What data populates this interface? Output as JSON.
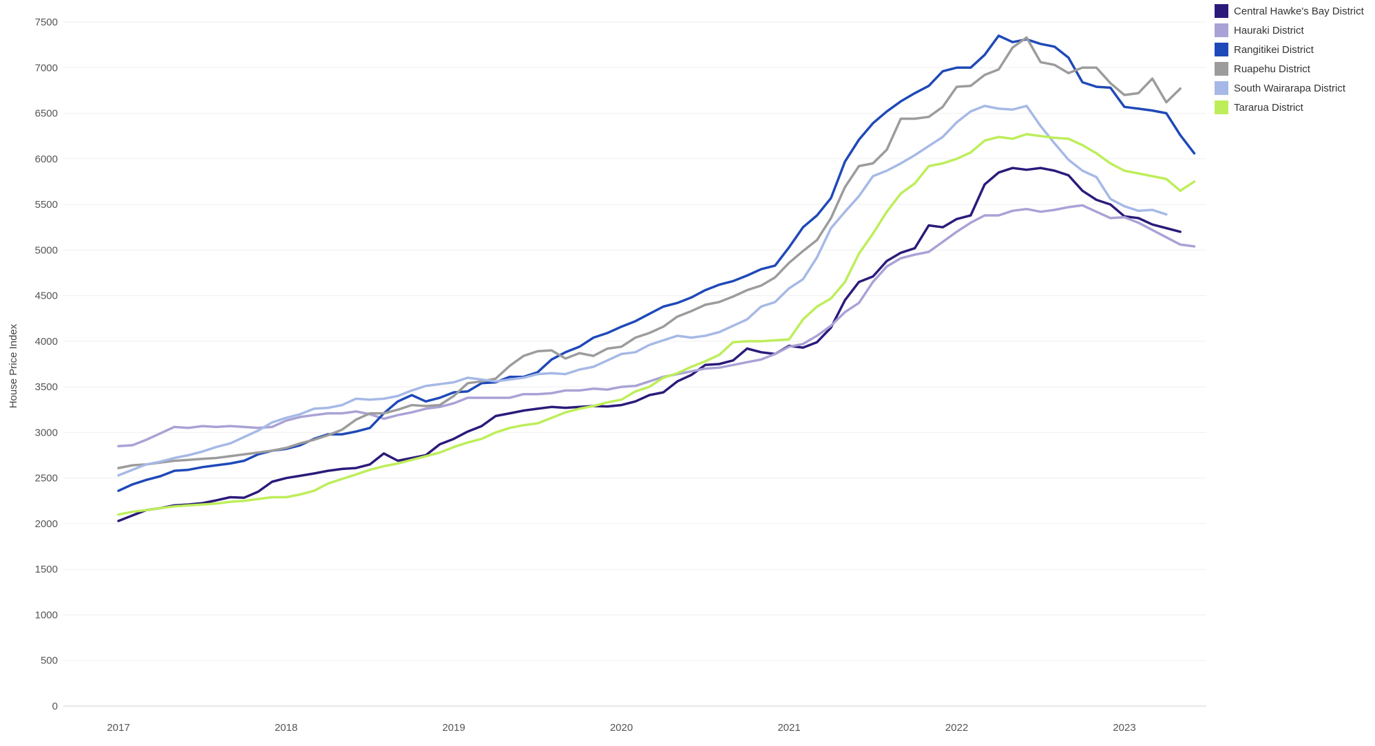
{
  "chart_data": {
    "type": "line",
    "title": "",
    "xlabel": "",
    "ylabel": "House Price Index",
    "ylim": [
      0,
      7500
    ],
    "y_ticks": [
      "0",
      "500",
      "1000",
      "1500",
      "2000",
      "2500",
      "3000",
      "3500",
      "4000",
      "4500",
      "5000",
      "5500",
      "6000",
      "6500",
      "7000",
      "7500"
    ],
    "x_ticks": [
      "2017",
      "2018",
      "2019",
      "2020",
      "2021",
      "2022",
      "2023"
    ],
    "x_range": [
      2017.0,
      2023.2
    ],
    "grid": true,
    "legend_position": "top-right",
    "series": [
      {
        "name": "Central Hawke's Bay District",
        "color": "#2c1a7a",
        "values": [
          2030,
          2090,
          2150,
          2170,
          2200,
          2210,
          2225,
          2255,
          2290,
          2285,
          2350,
          2460,
          2500,
          2525,
          2550,
          2580,
          2600,
          2610,
          2650,
          2770,
          2690,
          2720,
          2750,
          2870,
          2930,
          3010,
          3070,
          3180,
          3210,
          3240,
          3260,
          3280,
          3270,
          3280,
          3290,
          3285,
          3300,
          3340,
          3410,
          3440,
          3560,
          3630,
          3740,
          3750,
          3790,
          3920,
          3880,
          3860,
          3950,
          3930,
          3990,
          4150,
          4450,
          4650,
          4710,
          4880,
          4970,
          5020,
          5270,
          5250,
          5340,
          5380,
          5720,
          5850,
          5900,
          5880,
          5900,
          5870,
          5820,
          5650,
          5550,
          5500,
          5370,
          5350,
          5280,
          5240,
          5200
        ]
      },
      {
        "name": "Hauraki District",
        "color": "#a9a2d6",
        "values": [
          2850,
          2860,
          2920,
          2990,
          3060,
          3050,
          3070,
          3060,
          3070,
          3060,
          3050,
          3060,
          3130,
          3170,
          3190,
          3210,
          3210,
          3230,
          3200,
          3150,
          3190,
          3220,
          3260,
          3280,
          3320,
          3380,
          3380,
          3380,
          3380,
          3420,
          3420,
          3430,
          3460,
          3460,
          3480,
          3470,
          3500,
          3510,
          3560,
          3610,
          3640,
          3670,
          3700,
          3710,
          3740,
          3770,
          3800,
          3860,
          3940,
          3970,
          4060,
          4170,
          4320,
          4420,
          4650,
          4820,
          4910,
          4950,
          4980,
          5090,
          5200,
          5300,
          5380,
          5380,
          5430,
          5450,
          5420,
          5440,
          5470,
          5490,
          5420,
          5350,
          5360,
          5300,
          5220,
          5140,
          5060,
          5040
        ]
      },
      {
        "name": "Rangitikei District",
        "color": "#1f49b8",
        "values": [
          2360,
          2430,
          2480,
          2520,
          2580,
          2590,
          2620,
          2640,
          2660,
          2690,
          2760,
          2800,
          2820,
          2860,
          2930,
          2980,
          2980,
          3010,
          3050,
          3210,
          3340,
          3410,
          3340,
          3380,
          3440,
          3450,
          3540,
          3550,
          3610,
          3610,
          3660,
          3800,
          3880,
          3940,
          4040,
          4090,
          4160,
          4220,
          4300,
          4380,
          4420,
          4480,
          4560,
          4620,
          4660,
          4720,
          4790,
          4830,
          5030,
          5250,
          5380,
          5570,
          5970,
          6210,
          6390,
          6520,
          6630,
          6720,
          6800,
          6960,
          7000,
          7000,
          7140,
          7350,
          7280,
          7310,
          7260,
          7230,
          7110,
          6840,
          6790,
          6780,
          6570,
          6550,
          6530,
          6500,
          6260,
          6060
        ]
      },
      {
        "name": "Ruapehu District",
        "color": "#9c9c9c",
        "values": [
          2610,
          2640,
          2650,
          2670,
          2690,
          2700,
          2710,
          2720,
          2740,
          2760,
          2780,
          2800,
          2830,
          2880,
          2920,
          2970,
          3030,
          3140,
          3210,
          3210,
          3250,
          3300,
          3290,
          3300,
          3400,
          3540,
          3560,
          3590,
          3730,
          3840,
          3890,
          3900,
          3810,
          3870,
          3840,
          3920,
          3940,
          4040,
          4090,
          4160,
          4270,
          4330,
          4400,
          4430,
          4490,
          4560,
          4610,
          4700,
          4860,
          4990,
          5110,
          5350,
          5690,
          5920,
          5950,
          6100,
          6440,
          6440,
          6460,
          6570,
          6790,
          6800,
          6920,
          6980,
          7220,
          7330,
          7060,
          7030,
          6940,
          7000,
          7000,
          6830,
          6700,
          6720,
          6880,
          6620,
          6770
        ]
      },
      {
        "name": "South Wairarapa District",
        "color": "#a6b9e6",
        "values": [
          2530,
          2590,
          2650,
          2680,
          2720,
          2750,
          2790,
          2840,
          2880,
          2950,
          3020,
          3110,
          3160,
          3200,
          3260,
          3270,
          3300,
          3370,
          3360,
          3370,
          3400,
          3460,
          3510,
          3530,
          3550,
          3600,
          3580,
          3560,
          3580,
          3600,
          3640,
          3650,
          3640,
          3690,
          3720,
          3790,
          3860,
          3880,
          3960,
          4010,
          4060,
          4040,
          4060,
          4100,
          4170,
          4240,
          4380,
          4430,
          4580,
          4680,
          4920,
          5240,
          5420,
          5590,
          5810,
          5870,
          5950,
          6040,
          6140,
          6240,
          6400,
          6520,
          6580,
          6550,
          6540,
          6580,
          6360,
          6170,
          5990,
          5870,
          5800,
          5560,
          5480,
          5430,
          5440,
          5390
        ]
      },
      {
        "name": "Tararua District",
        "color": "#bdee5a",
        "values": [
          2100,
          2130,
          2150,
          2170,
          2190,
          2200,
          2210,
          2220,
          2240,
          2250,
          2270,
          2290,
          2290,
          2320,
          2360,
          2440,
          2490,
          2540,
          2590,
          2630,
          2660,
          2700,
          2740,
          2780,
          2840,
          2890,
          2930,
          3000,
          3050,
          3080,
          3100,
          3160,
          3220,
          3260,
          3290,
          3330,
          3360,
          3450,
          3500,
          3600,
          3650,
          3720,
          3780,
          3850,
          3990,
          4000,
          4000,
          4010,
          4020,
          4240,
          4380,
          4470,
          4650,
          4960,
          5180,
          5420,
          5620,
          5730,
          5920,
          5950,
          6000,
          6070,
          6200,
          6240,
          6220,
          6270,
          6250,
          6230,
          6220,
          6150,
          6060,
          5950,
          5870,
          5840,
          5810,
          5780,
          5650,
          5750
        ]
      }
    ]
  }
}
